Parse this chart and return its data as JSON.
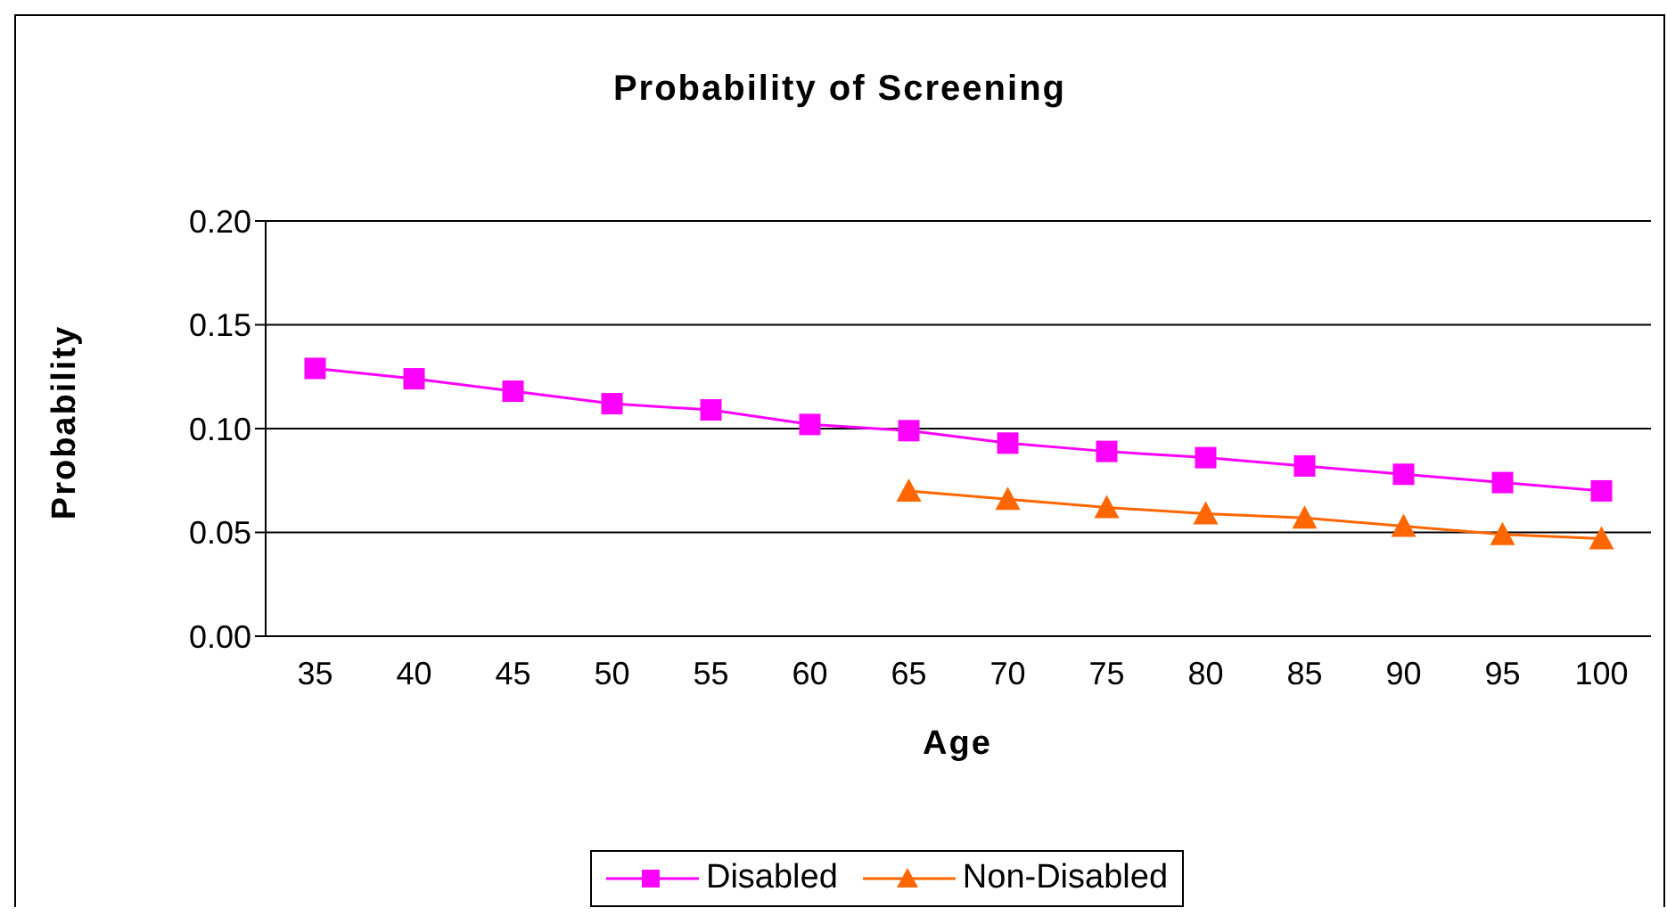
{
  "chart_data": {
    "type": "line",
    "title": "Probability of Screening",
    "xlabel": "Age",
    "ylabel": "Probability",
    "categories": [
      "35",
      "40",
      "45",
      "50",
      "55",
      "60",
      "65",
      "70",
      "75",
      "80",
      "85",
      "90",
      "95",
      "100"
    ],
    "series": [
      {
        "name": "Disabled",
        "color": "#ff00ff",
        "marker": "square",
        "values": [
          0.129,
          0.124,
          0.118,
          0.112,
          0.109,
          0.102,
          0.099,
          0.093,
          0.089,
          0.086,
          0.082,
          0.078,
          0.074,
          0.07
        ]
      },
      {
        "name": "Non-Disabled",
        "color": "#ff6600",
        "marker": "triangle",
        "values": [
          null,
          null,
          null,
          null,
          null,
          null,
          0.07,
          0.066,
          0.062,
          0.059,
          0.057,
          0.053,
          0.049,
          0.047
        ]
      }
    ],
    "ylim": [
      0,
      0.2
    ],
    "yticks": [
      {
        "value": 0,
        "label": "0.00"
      },
      {
        "value": 0.05,
        "label": "0.05"
      },
      {
        "value": 0.1,
        "label": "0.10"
      },
      {
        "value": 0.15,
        "label": "0.15"
      },
      {
        "value": 0.2,
        "label": "0.20"
      }
    ],
    "grid": "y",
    "legend": "bottom"
  }
}
